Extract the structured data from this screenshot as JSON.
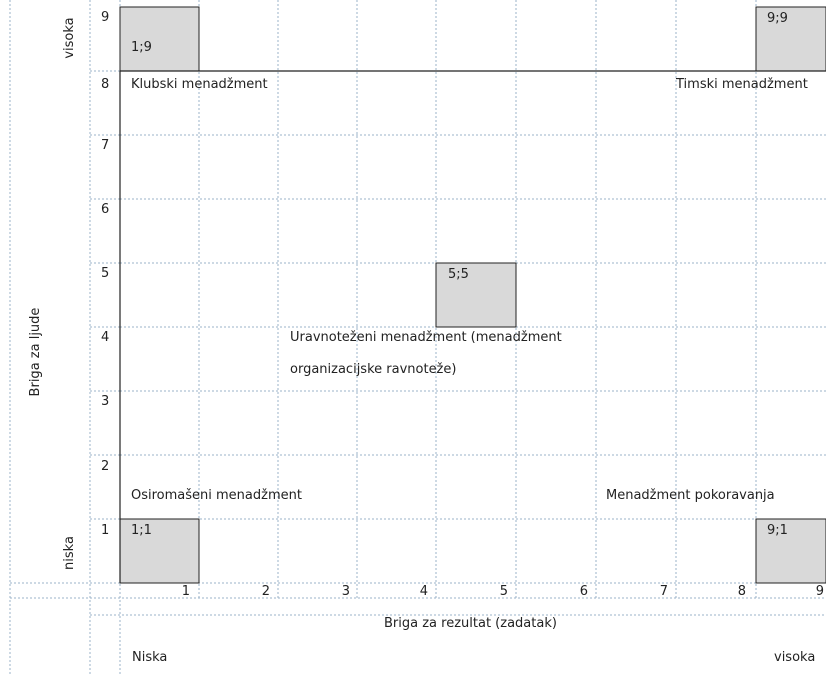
{
  "y_axis": {
    "title": "Briga za ljude",
    "high": "visoka",
    "low": "niska",
    "ticks": [
      "9",
      "8",
      "7",
      "6",
      "5",
      "4",
      "3",
      "2",
      "1"
    ]
  },
  "x_axis": {
    "title": "Briga za rezultat (zadatak)",
    "low": "Niska",
    "high": "visoka",
    "ticks": [
      "1",
      "2",
      "3",
      "4",
      "5",
      "6",
      "7",
      "8",
      "9"
    ]
  },
  "styles": {
    "club": "Klubski menadžment",
    "team": "Timski menadžment",
    "balanced_line1": "Uravnoteženi menadžment (menadžment",
    "balanced_line2": "organizacijske ravnoteže)",
    "impoverished": "Osiromašeni menadžment",
    "compliance": "Menadžment pokoravanja"
  },
  "cells": {
    "c19": "1;9",
    "c99": "9;9",
    "c55": "5;5",
    "c11": "1;1",
    "c91": "9;1"
  },
  "colors": {
    "highlight_fill": "#d9d9d9",
    "grid_line": "#9bb3c9",
    "border": "#222222"
  }
}
